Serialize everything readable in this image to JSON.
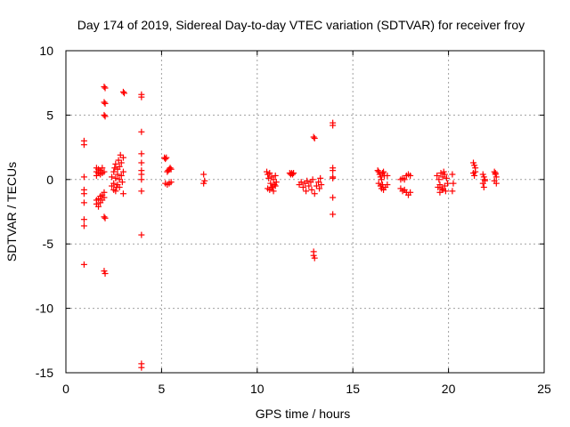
{
  "chart_data": {
    "type": "scatter",
    "title": "Day 174 of 2019, Sidereal Day-to-day VTEC variation (SDTVAR) for receiver froy",
    "xlabel": "GPS time / hours",
    "ylabel": "SDTVAR / TECUs",
    "xlim": [
      0,
      25
    ],
    "ylim": [
      -15,
      10
    ],
    "xticks": [
      0,
      5,
      10,
      15,
      20,
      25
    ],
    "yticks": [
      -15,
      -10,
      -5,
      0,
      5,
      10
    ],
    "xtick_labels": [
      "0",
      "5",
      "10",
      "15",
      "20",
      "25"
    ],
    "ytick_labels": [
      "-15",
      "-10",
      "-5",
      "0",
      "5",
      "10"
    ],
    "grid": true,
    "marker": "plus",
    "series": [
      {
        "name": "SDTVAR",
        "color": "#ff0000",
        "points": [
          [
            0.95,
            3.0
          ],
          [
            0.95,
            2.7
          ],
          [
            0.95,
            0.2
          ],
          [
            0.95,
            -0.8
          ],
          [
            0.95,
            -1.1
          ],
          [
            0.95,
            -1.8
          ],
          [
            0.95,
            -3.1
          ],
          [
            0.95,
            -3.6
          ],
          [
            0.95,
            -6.6
          ],
          [
            1.6,
            0.3
          ],
          [
            1.6,
            0.6
          ],
          [
            1.6,
            0.9
          ],
          [
            1.7,
            0.5
          ],
          [
            1.7,
            0.8
          ],
          [
            1.8,
            0.4
          ],
          [
            1.8,
            0.7
          ],
          [
            1.9,
            0.5
          ],
          [
            1.9,
            0.9
          ],
          [
            2.0,
            0.6
          ],
          [
            1.6,
            -1.6
          ],
          [
            1.6,
            -1.9
          ],
          [
            1.7,
            -1.5
          ],
          [
            1.7,
            -2.1
          ],
          [
            1.8,
            -1.3
          ],
          [
            1.8,
            -1.8
          ],
          [
            1.9,
            -1.2
          ],
          [
            1.9,
            -1.6
          ],
          [
            2.0,
            -1.0
          ],
          [
            2.0,
            -1.4
          ],
          [
            2.0,
            7.2
          ],
          [
            2.05,
            7.1
          ],
          [
            2.0,
            6.0
          ],
          [
            2.05,
            5.9
          ],
          [
            2.0,
            5.0
          ],
          [
            2.05,
            4.9
          ],
          [
            2.0,
            -2.9
          ],
          [
            2.05,
            -3.0
          ],
          [
            2.0,
            -7.1
          ],
          [
            2.05,
            -7.3
          ],
          [
            2.4,
            0.2
          ],
          [
            2.4,
            -0.5
          ],
          [
            2.5,
            0.6
          ],
          [
            2.5,
            -0.3
          ],
          [
            2.55,
            0.9
          ],
          [
            2.6,
            0.1
          ],
          [
            2.6,
            1.2
          ],
          [
            2.65,
            -0.6
          ],
          [
            2.7,
            0.4
          ],
          [
            2.7,
            0.8
          ],
          [
            2.75,
            1.5
          ],
          [
            2.8,
            0.0
          ],
          [
            2.8,
            1.0
          ],
          [
            2.85,
            1.9
          ],
          [
            2.9,
            0.3
          ],
          [
            2.9,
            1.3
          ],
          [
            2.95,
            -0.2
          ],
          [
            3.0,
            0.6
          ],
          [
            3.0,
            1.7
          ],
          [
            3.0,
            -1.1
          ],
          [
            2.5,
            -0.8
          ],
          [
            2.6,
            -0.9
          ],
          [
            2.7,
            -0.4
          ],
          [
            2.8,
            -0.6
          ],
          [
            3.0,
            6.8
          ],
          [
            3.05,
            6.7
          ],
          [
            3.95,
            6.6
          ],
          [
            3.95,
            6.4
          ],
          [
            3.95,
            3.7
          ],
          [
            3.95,
            2.0
          ],
          [
            3.95,
            1.3
          ],
          [
            3.95,
            0.7
          ],
          [
            3.95,
            0.4
          ],
          [
            3.95,
            0.0
          ],
          [
            3.95,
            -0.9
          ],
          [
            3.95,
            -4.3
          ],
          [
            3.95,
            -14.3
          ],
          [
            3.95,
            -14.6
          ],
          [
            5.15,
            1.7
          ],
          [
            5.2,
            1.6
          ],
          [
            5.25,
            1.7
          ],
          [
            5.3,
            0.6
          ],
          [
            5.35,
            0.7
          ],
          [
            5.4,
            0.8
          ],
          [
            5.45,
            0.9
          ],
          [
            5.5,
            0.8
          ],
          [
            5.2,
            -0.3
          ],
          [
            5.3,
            -0.4
          ],
          [
            5.4,
            -0.3
          ],
          [
            5.5,
            -0.2
          ],
          [
            7.2,
            0.4
          ],
          [
            7.25,
            -0.1
          ],
          [
            7.2,
            -0.3
          ],
          [
            10.5,
            0.6
          ],
          [
            10.55,
            0.4
          ],
          [
            10.6,
            0.1
          ],
          [
            10.65,
            0.5
          ],
          [
            10.7,
            -0.3
          ],
          [
            10.75,
            0.2
          ],
          [
            10.8,
            -0.6
          ],
          [
            10.85,
            0.0
          ],
          [
            10.9,
            -0.4
          ],
          [
            10.95,
            0.3
          ],
          [
            10.55,
            -0.7
          ],
          [
            10.65,
            -0.8
          ],
          [
            10.75,
            -0.6
          ],
          [
            10.85,
            -0.9
          ],
          [
            10.95,
            -0.5
          ],
          [
            11.0,
            -0.2
          ],
          [
            11.7,
            0.5
          ],
          [
            11.75,
            0.4
          ],
          [
            11.8,
            0.5
          ],
          [
            11.85,
            0.4
          ],
          [
            11.9,
            0.5
          ],
          [
            12.2,
            -0.4
          ],
          [
            12.3,
            -0.2
          ],
          [
            12.4,
            -0.6
          ],
          [
            12.5,
            -0.3
          ],
          [
            12.55,
            -0.9
          ],
          [
            12.6,
            -0.1
          ],
          [
            12.7,
            -0.5
          ],
          [
            12.8,
            -0.2
          ],
          [
            12.85,
            -0.8
          ],
          [
            12.9,
            0.0
          ],
          [
            13.0,
            -1.1
          ],
          [
            13.1,
            -0.5
          ],
          [
            13.2,
            -0.2
          ],
          [
            13.25,
            -0.7
          ],
          [
            13.3,
            0.1
          ],
          [
            13.35,
            -0.4
          ],
          [
            12.95,
            3.3
          ],
          [
            13.0,
            3.2
          ],
          [
            12.95,
            -5.6
          ],
          [
            12.95,
            -5.9
          ],
          [
            13.0,
            -6.1
          ],
          [
            13.95,
            4.4
          ],
          [
            13.95,
            4.2
          ],
          [
            13.95,
            0.9
          ],
          [
            13.95,
            0.7
          ],
          [
            13.95,
            0.2
          ],
          [
            13.95,
            0.1
          ],
          [
            13.95,
            -1.4
          ],
          [
            13.95,
            -2.7
          ],
          [
            16.3,
            0.7
          ],
          [
            16.35,
            0.6
          ],
          [
            16.4,
            0.4
          ],
          [
            16.45,
            0.2
          ],
          [
            16.5,
            0.0
          ],
          [
            16.55,
            0.5
          ],
          [
            16.6,
            0.6
          ],
          [
            16.65,
            0.3
          ],
          [
            16.35,
            -0.3
          ],
          [
            16.45,
            -0.5
          ],
          [
            16.5,
            -0.7
          ],
          [
            16.55,
            -0.4
          ],
          [
            16.6,
            -0.8
          ],
          [
            16.7,
            -0.6
          ],
          [
            16.8,
            0.3
          ],
          [
            16.8,
            -0.4
          ],
          [
            17.5,
            -0.7
          ],
          [
            17.6,
            -0.9
          ],
          [
            17.7,
            -0.8
          ],
          [
            17.8,
            -1.0
          ],
          [
            17.9,
            -1.2
          ],
          [
            18.0,
            -1.0
          ],
          [
            17.5,
            0.0
          ],
          [
            17.6,
            0.1
          ],
          [
            17.7,
            0.0
          ],
          [
            17.8,
            0.3
          ],
          [
            17.9,
            0.4
          ],
          [
            18.0,
            0.3
          ],
          [
            19.4,
            0.3
          ],
          [
            19.5,
            0.0
          ],
          [
            19.55,
            -0.4
          ],
          [
            19.6,
            0.5
          ],
          [
            19.65,
            -0.7
          ],
          [
            19.7,
            0.2
          ],
          [
            19.75,
            0.6
          ],
          [
            19.8,
            -0.5
          ],
          [
            19.85,
            -0.9
          ],
          [
            19.9,
            0.1
          ],
          [
            19.45,
            -0.6
          ],
          [
            19.55,
            -1.0
          ],
          [
            19.7,
            -0.8
          ],
          [
            19.8,
            0.4
          ],
          [
            19.95,
            -0.3
          ],
          [
            20.2,
            0.4
          ],
          [
            20.25,
            -0.3
          ],
          [
            20.2,
            -0.9
          ],
          [
            21.3,
            1.3
          ],
          [
            21.35,
            1.1
          ],
          [
            21.4,
            0.9
          ],
          [
            21.3,
            0.5
          ],
          [
            21.35,
            0.3
          ],
          [
            21.4,
            0.6
          ],
          [
            21.8,
            0.4
          ],
          [
            21.85,
            0.2
          ],
          [
            21.9,
            -0.1
          ],
          [
            21.8,
            -0.3
          ],
          [
            21.85,
            -0.6
          ],
          [
            21.9,
            0.0
          ],
          [
            22.4,
            0.6
          ],
          [
            22.45,
            0.4
          ],
          [
            22.5,
            0.2
          ],
          [
            22.4,
            -0.1
          ],
          [
            22.5,
            -0.3
          ],
          [
            22.45,
            0.5
          ]
        ]
      }
    ]
  }
}
